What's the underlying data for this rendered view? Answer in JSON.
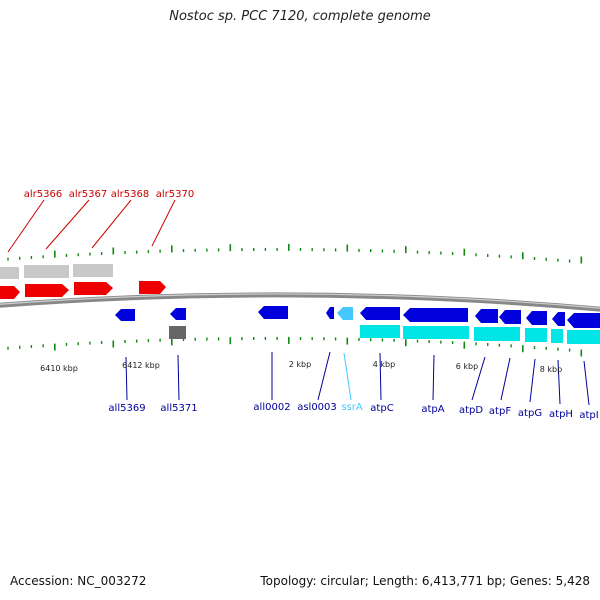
{
  "title": "Nostoc sp. PCC 7120, complete genome",
  "footer": {
    "accession": "Accession: NC_003272",
    "summary": "Topology: circular; Length: 6,413,771 bp; Genes: 5,428"
  },
  "colors": {
    "forward_gene": "#ff0000",
    "forward_gene_label": "#cc0000",
    "forward_cds": "#bbbbbb",
    "reverse_gene": "#0000e6",
    "reverse_gene_label": "#000099",
    "cds": "#00e5e5",
    "rna": "#44ccff",
    "pseudo": "#666666",
    "tick": "#118811",
    "backbone": "#777777"
  },
  "scale_labels": [
    "6410 kbp",
    "6412 kbp",
    "2 kbp",
    "4 kbp",
    "6 kbp",
    "8 kbp"
  ],
  "top_gene_labels": [
    "alr5366",
    "alr5367",
    "alr5368",
    "alr5370"
  ],
  "bottom_gene_labels": [
    "all5369",
    "all5371",
    "all0002",
    "asl0003",
    "ssrA",
    "atpC",
    "atpA",
    "atpD",
    "atpF",
    "atpG",
    "atpH",
    "atpI"
  ]
}
